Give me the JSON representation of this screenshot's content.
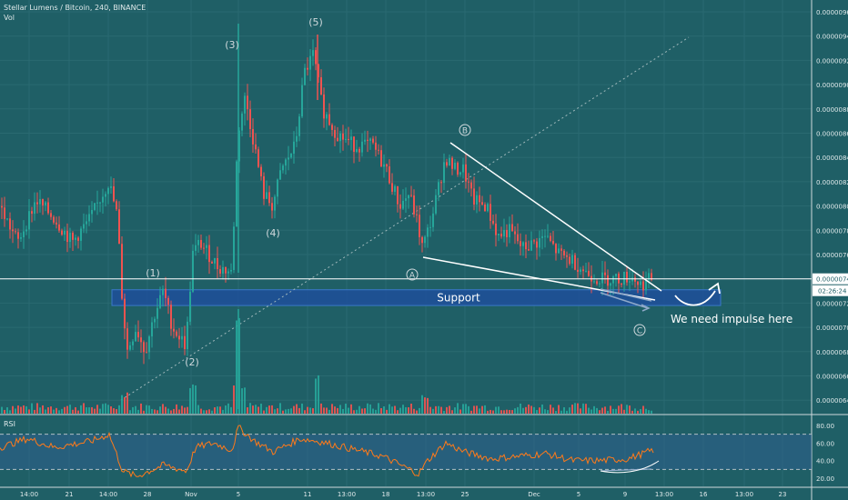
{
  "header": {
    "title": "Stellar Lumens / Bitcoin, 240, BINANCE",
    "volume_label": "Vol",
    "rsi_label": "RSI"
  },
  "colors": {
    "background": "#1f5f66",
    "up": "#26a69a",
    "down": "#ef5350",
    "support": "#1e4f9a",
    "white": "#ffffff",
    "rsi_line": "#ff7a1a",
    "last_price_bg": "#ffffff"
  },
  "price_axis": {
    "ticks": [
      "0.00000960",
      "0.00000940",
      "0.00000920",
      "0.00000900",
      "0.00000880",
      "0.00000860",
      "0.00000840",
      "0.00000820",
      "0.00000800",
      "0.00000780",
      "0.00000760",
      "0.00000740",
      "0.00000720",
      "0.00000700",
      "0.00000680",
      "0.00000660",
      "0.00000640"
    ],
    "last_price": "0.00000740",
    "countdown": "02:26:24"
  },
  "rsi_axis": {
    "ticks": [
      "80.00",
      "60.00",
      "40.00",
      "20.00"
    ]
  },
  "time_axis": {
    "ticks": [
      "14:00",
      "21",
      "14:00",
      "28",
      "Nov",
      "5",
      "11",
      "13:00",
      "18",
      "13:00",
      "25",
      "Dec",
      "5",
      "9",
      "13:00",
      "16",
      "13:00",
      "23"
    ]
  },
  "annotations": {
    "support_label": "Support",
    "impulse_text": "We need impulse here",
    "wave_labels": [
      "(1)",
      "(2)",
      "(3)",
      "(4)",
      "(5)"
    ],
    "abc_labels": [
      "A",
      "B",
      "C"
    ]
  },
  "chart_data": {
    "type": "candlestick",
    "symbol": "Stellar Lumens / Bitcoin",
    "interval": "240",
    "exchange": "BINANCE",
    "ylim": [
      6.3e-06,
      9.7e-06
    ],
    "support_zone": [
      7.18e-06,
      7.31e-06
    ],
    "rsi_bands": [
      70,
      30
    ],
    "rsi_ylim": [
      12,
      88
    ],
    "price_path_approx": [
      [
        0,
        8e-06
      ],
      [
        20,
        7.7e-06
      ],
      [
        40,
        8.05e-06
      ],
      [
        60,
        7.9e-06
      ],
      [
        80,
        7.7e-06
      ],
      [
        100,
        7.9e-06
      ],
      [
        120,
        8.2e-06
      ],
      [
        130,
        7.9e-06
      ],
      [
        133,
        7.4e-06
      ],
      [
        140,
        6.8e-06
      ],
      [
        150,
        7e-06
      ],
      [
        160,
        6.8e-06
      ],
      [
        170,
        7.1e-06
      ],
      [
        180,
        7.3e-06
      ],
      [
        190,
        7e-06
      ],
      [
        205,
        6.85e-06
      ],
      [
        212,
        7.6e-06
      ],
      [
        220,
        7.7e-06
      ],
      [
        240,
        7.5e-06
      ],
      [
        255,
        7.45e-06
      ],
      [
        262,
        8.6e-06
      ],
      [
        270,
        8.9e-06
      ],
      [
        280,
        8.5e-06
      ],
      [
        290,
        8.1e-06
      ],
      [
        300,
        8e-06
      ],
      [
        310,
        8.3e-06
      ],
      [
        325,
        8.5e-06
      ],
      [
        335,
        9.1e-06
      ],
      [
        345,
        9.25e-06
      ],
      [
        355,
        8.8e-06
      ],
      [
        370,
        8.6e-06
      ],
      [
        390,
        8.5e-06
      ],
      [
        410,
        8.5e-06
      ],
      [
        425,
        8.3e-06
      ],
      [
        440,
        8e-06
      ],
      [
        450,
        8.1e-06
      ],
      [
        458,
        7.9e-06
      ],
      [
        465,
        7.65e-06
      ],
      [
        475,
        7.9e-06
      ],
      [
        490,
        8.4e-06
      ],
      [
        500,
        8.3e-06
      ],
      [
        510,
        8.3e-06
      ],
      [
        520,
        8.05e-06
      ],
      [
        535,
        8e-06
      ],
      [
        548,
        7.75e-06
      ],
      [
        560,
        7.8e-06
      ],
      [
        575,
        7.65e-06
      ],
      [
        590,
        7.7e-06
      ],
      [
        600,
        7.75e-06
      ],
      [
        615,
        7.6e-06
      ],
      [
        630,
        7.55e-06
      ],
      [
        645,
        7.45e-06
      ],
      [
        660,
        7.4e-06
      ],
      [
        680,
        7.4e-06
      ],
      [
        695,
        7.42e-06
      ],
      [
        705,
        7.35e-06
      ],
      [
        715,
        7.4e-06
      ]
    ],
    "rsi_path_approx": [
      [
        0,
        55
      ],
      [
        30,
        65
      ],
      [
        60,
        55
      ],
      [
        100,
        62
      ],
      [
        120,
        70
      ],
      [
        135,
        28
      ],
      [
        150,
        22
      ],
      [
        180,
        35
      ],
      [
        205,
        28
      ],
      [
        215,
        55
      ],
      [
        235,
        60
      ],
      [
        255,
        52
      ],
      [
        262,
        78
      ],
      [
        280,
        62
      ],
      [
        300,
        50
      ],
      [
        330,
        65
      ],
      [
        350,
        62
      ],
      [
        380,
        55
      ],
      [
        420,
        45
      ],
      [
        440,
        35
      ],
      [
        460,
        25
      ],
      [
        470,
        40
      ],
      [
        490,
        60
      ],
      [
        510,
        50
      ],
      [
        540,
        42
      ],
      [
        570,
        45
      ],
      [
        600,
        48
      ],
      [
        630,
        40
      ],
      [
        660,
        40
      ],
      [
        690,
        42
      ],
      [
        718,
        52
      ]
    ]
  }
}
